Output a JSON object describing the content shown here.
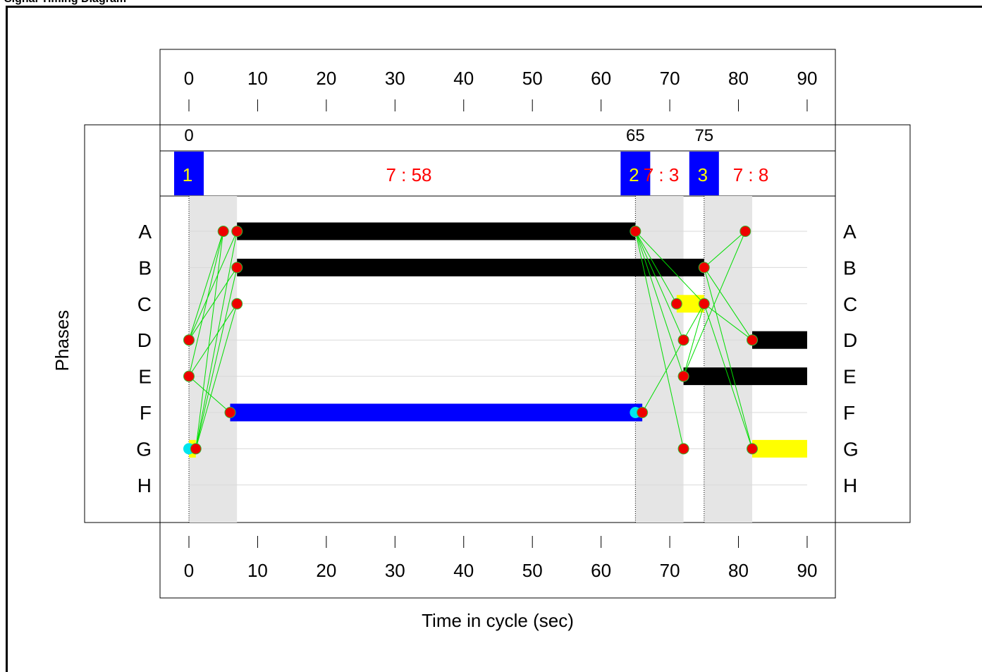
{
  "window_title": "Signal Timing Diagram",
  "axis": {
    "tick_labels": [
      "0",
      "10",
      "20",
      "30",
      "40",
      "50",
      "60",
      "70",
      "80",
      "90"
    ],
    "xlabel": "Time in cycle (sec)",
    "ylabel": "Phases"
  },
  "barrier_times": [
    {
      "t": 0,
      "label": "0"
    },
    {
      "t": 65,
      "label": "65"
    },
    {
      "t": 75,
      "label": "75"
    }
  ],
  "stages": [
    {
      "t": 0,
      "number": "1",
      "timing_label": "7 : 58"
    },
    {
      "t": 65,
      "number": "2",
      "timing_label": "7 : 3"
    },
    {
      "t": 75,
      "number": "3",
      "timing_label": "7 : 8"
    }
  ],
  "intergreens": [
    {
      "start": 0,
      "end": 7
    },
    {
      "start": 65,
      "end": 72
    },
    {
      "start": 75,
      "end": 82
    }
  ],
  "phases": [
    "A",
    "B",
    "C",
    "D",
    "E",
    "F",
    "G",
    "H"
  ],
  "bars": [
    {
      "phase": "A",
      "start": 7,
      "end": 65,
      "color": "#000000"
    },
    {
      "phase": "B",
      "start": 7,
      "end": 75,
      "color": "#000000"
    },
    {
      "phase": "C",
      "start": 71,
      "end": 75,
      "color": "#ffff00"
    },
    {
      "phase": "D",
      "start": 82,
      "end": 90,
      "color": "#000000"
    },
    {
      "phase": "E",
      "start": 72,
      "end": 90,
      "color": "#000000"
    },
    {
      "phase": "F",
      "start": 6,
      "end": 66,
      "color": "#0000ff"
    },
    {
      "phase": "G",
      "start": 0,
      "end": 1,
      "color": "#ffff00"
    },
    {
      "phase": "G",
      "start": 82,
      "end": 90,
      "color": "#ffff00"
    }
  ],
  "markers": [
    {
      "phase": "A",
      "t": 5,
      "type": "red"
    },
    {
      "phase": "A",
      "t": 7,
      "type": "red"
    },
    {
      "phase": "A",
      "t": 65,
      "type": "red"
    },
    {
      "phase": "A",
      "t": 81,
      "type": "red"
    },
    {
      "phase": "B",
      "t": 7,
      "type": "red"
    },
    {
      "phase": "B",
      "t": 75,
      "type": "red"
    },
    {
      "phase": "C",
      "t": 7,
      "type": "red"
    },
    {
      "phase": "C",
      "t": 71,
      "type": "red"
    },
    {
      "phase": "C",
      "t": 75,
      "type": "red"
    },
    {
      "phase": "D",
      "t": 0,
      "type": "red"
    },
    {
      "phase": "D",
      "t": 72,
      "type": "red"
    },
    {
      "phase": "D",
      "t": 82,
      "type": "red"
    },
    {
      "phase": "E",
      "t": 0,
      "type": "red"
    },
    {
      "phase": "E",
      "t": 72,
      "type": "red"
    },
    {
      "phase": "F",
      "t": 6,
      "type": "red"
    },
    {
      "phase": "F",
      "t": 65,
      "type": "cyan"
    },
    {
      "phase": "F",
      "t": 66,
      "type": "red"
    },
    {
      "phase": "G",
      "t": 0,
      "type": "cyan"
    },
    {
      "phase": "G",
      "t": 1,
      "type": "red"
    },
    {
      "phase": "G",
      "t": 72,
      "type": "red"
    },
    {
      "phase": "G",
      "t": 82,
      "type": "red"
    }
  ],
  "links": [
    {
      "from": [
        "D",
        0
      ],
      "to": [
        "A",
        5
      ]
    },
    {
      "from": [
        "D",
        0
      ],
      "to": [
        "A",
        7
      ]
    },
    {
      "from": [
        "D",
        0
      ],
      "to": [
        "B",
        7
      ]
    },
    {
      "from": [
        "E",
        0
      ],
      "to": [
        "A",
        5
      ]
    },
    {
      "from": [
        "E",
        0
      ],
      "to": [
        "C",
        7
      ]
    },
    {
      "from": [
        "E",
        0
      ],
      "to": [
        "F",
        6
      ]
    },
    {
      "from": [
        "G",
        1
      ],
      "to": [
        "A",
        7
      ]
    },
    {
      "from": [
        "G",
        1
      ],
      "to": [
        "B",
        7
      ]
    },
    {
      "from": [
        "G",
        1
      ],
      "to": [
        "C",
        7
      ]
    },
    {
      "from": [
        "G",
        1
      ],
      "to": [
        "A",
        5
      ]
    },
    {
      "from": [
        "A",
        65
      ],
      "to": [
        "C",
        71
      ]
    },
    {
      "from": [
        "A",
        65
      ],
      "to": [
        "D",
        72
      ]
    },
    {
      "from": [
        "A",
        65
      ],
      "to": [
        "E",
        72
      ]
    },
    {
      "from": [
        "A",
        65
      ],
      "to": [
        "G",
        72
      ]
    },
    {
      "from": [
        "A",
        65
      ],
      "to": [
        "C",
        75
      ]
    },
    {
      "from": [
        "F",
        66
      ],
      "to": [
        "C",
        75
      ]
    },
    {
      "from": [
        "B",
        75
      ],
      "to": [
        "D",
        82
      ]
    },
    {
      "from": [
        "B",
        75
      ],
      "to": [
        "G",
        82
      ]
    },
    {
      "from": [
        "B",
        75
      ],
      "to": [
        "A",
        81
      ]
    },
    {
      "from": [
        "C",
        75
      ],
      "to": [
        "D",
        82
      ]
    },
    {
      "from": [
        "C",
        75
      ],
      "to": [
        "G",
        82
      ]
    },
    {
      "from": [
        "E",
        72
      ],
      "to": [
        "A",
        81
      ]
    },
    {
      "from": [
        "E",
        72
      ],
      "to": [
        "C",
        75
      ]
    }
  ],
  "colors": {
    "stage_box": "#0000ff",
    "stage_number": "#ffff00",
    "timing_label": "#ff0000",
    "intergreen_shade": "#e5e5e5",
    "link_line": "#00dd00",
    "marker_red": "#ee0000",
    "marker_cyan": "#00e5ee",
    "grid_line": "#d9d9d9"
  }
}
